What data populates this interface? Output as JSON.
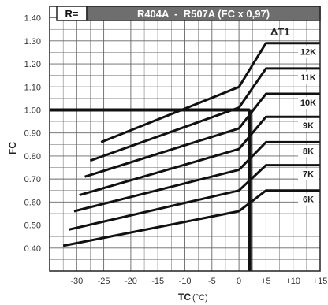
{
  "chart_data": {
    "type": "line",
    "header": {
      "left": "R=",
      "right": "R404A  -  R507A (FC x 0,97)"
    },
    "xlabel": "TC",
    "xunit": "(°C)",
    "ylabel": "FC",
    "xlim": [
      -35,
      15
    ],
    "ylim": [
      0.3,
      1.45
    ],
    "xticks": [
      -30,
      -25,
      -20,
      -15,
      -10,
      -5,
      0,
      5,
      10,
      15
    ],
    "xtick_labels": [
      "-30",
      "-25",
      "-20",
      "-15",
      "-10",
      "-5",
      "0",
      "+5",
      "+10",
      "+15"
    ],
    "yticks": [
      0.4,
      0.5,
      0.6,
      0.7,
      0.8,
      0.9,
      1.0,
      1.1,
      1.2,
      1.3,
      1.4
    ],
    "ytick_labels": [
      "0.40",
      "0.50",
      "0.60",
      "0.70",
      "0.80",
      "0.90",
      "1.00",
      "1.10",
      "1.20",
      "1.30",
      "1.40"
    ],
    "grid": true,
    "legend_title": "ΔT1",
    "reference_lines": {
      "horizontal_y": 1.0,
      "vertical_x": 2
    },
    "series": [
      {
        "name": "12K",
        "points": [
          [
            -25.5,
            0.86
          ],
          [
            0,
            1.1
          ],
          [
            5,
            1.29
          ],
          [
            15,
            1.29
          ]
        ]
      },
      {
        "name": "11K",
        "points": [
          [
            -27.5,
            0.78
          ],
          [
            0,
            1.01
          ],
          [
            5,
            1.18
          ],
          [
            15,
            1.18
          ]
        ]
      },
      {
        "name": "10K",
        "points": [
          [
            -28.5,
            0.71
          ],
          [
            0,
            0.92
          ],
          [
            5,
            1.07
          ],
          [
            15,
            1.07
          ]
        ]
      },
      {
        "name": "9K",
        "points": [
          [
            -29.5,
            0.63
          ],
          [
            0,
            0.83
          ],
          [
            5,
            0.97
          ],
          [
            15,
            0.97
          ]
        ]
      },
      {
        "name": "8K",
        "points": [
          [
            -30.5,
            0.56
          ],
          [
            0,
            0.74
          ],
          [
            5,
            0.86
          ],
          [
            15,
            0.86
          ]
        ]
      },
      {
        "name": "7K",
        "points": [
          [
            -31.5,
            0.48
          ],
          [
            0,
            0.65
          ],
          [
            5,
            0.76
          ],
          [
            15,
            0.76
          ]
        ]
      },
      {
        "name": "6K",
        "points": [
          [
            -32.5,
            0.41
          ],
          [
            0,
            0.56
          ],
          [
            5,
            0.65
          ],
          [
            15,
            0.65
          ]
        ]
      }
    ]
  }
}
